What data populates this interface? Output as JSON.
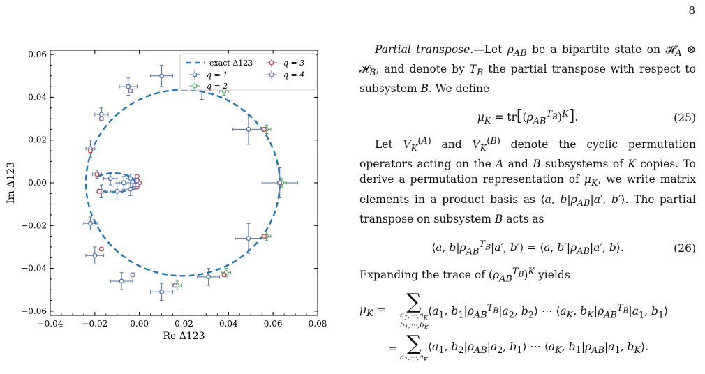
{
  "page": {
    "number": "8"
  },
  "chart_data": {
    "type": "scatter",
    "xlabel": "Re Δ123",
    "ylabel": "Im Δ123",
    "xlim": [
      -0.04,
      0.08
    ],
    "ylim": [
      -0.062,
      0.062
    ],
    "xticks": [
      "−0.04",
      "−0.02",
      "0.00",
      "0.02",
      "0.04",
      "0.06",
      "0.08"
    ],
    "xtick_values": [
      -0.04,
      -0.02,
      0,
      0.02,
      0.04,
      0.06,
      0.08
    ],
    "yticks": [
      "−0.06",
      "−0.04",
      "−0.02",
      "0.00",
      "0.02",
      "0.04",
      "0.06"
    ],
    "ytick_values": [
      -0.06,
      -0.04,
      -0.02,
      0,
      0.02,
      0.04,
      0.06
    ],
    "legend_placement": "top-right",
    "legend": [
      {
        "label": "exact Δ123",
        "series": "exact"
      },
      {
        "label": "q = 1",
        "series": "q1"
      },
      {
        "label": "q = 2",
        "series": "q2"
      },
      {
        "label": "q = 3",
        "series": "q3"
      },
      {
        "label": "q = 4",
        "series": "q4"
      }
    ],
    "colors": {
      "exact": "#1f77b4",
      "q1": "#4c72b0",
      "q2": "#55a868",
      "q3": "#c44e52",
      "q4": "#8172b3"
    },
    "series": [
      {
        "name": "q = 1",
        "points": [
          {
            "x": 0.063,
            "y": 0.0,
            "xe": 0.008,
            "ye": 0.007
          },
          {
            "x": 0.049,
            "y": 0.025,
            "xe": 0.007,
            "ye": 0.007
          },
          {
            "x": 0.028,
            "y": 0.045,
            "xe": 0.007,
            "ye": 0.006
          },
          {
            "x": 0.01,
            "y": 0.05,
            "xe": 0.005,
            "ye": 0.005
          },
          {
            "x": -0.005,
            "y": 0.045,
            "xe": 0.004,
            "ye": 0.004
          },
          {
            "x": -0.017,
            "y": 0.032,
            "xe": 0.003,
            "ye": 0.003
          },
          {
            "x": -0.022,
            "y": 0.016,
            "xe": 0.002,
            "ye": 0.004
          },
          {
            "x": -0.019,
            "y": 0.004,
            "xe": 0.002,
            "ye": 0.002
          },
          {
            "x": -0.022,
            "y": -0.019,
            "xe": 0.003,
            "ye": 0.003
          },
          {
            "x": -0.02,
            "y": -0.034,
            "xe": 0.004,
            "ye": 0.004
          },
          {
            "x": -0.008,
            "y": -0.046,
            "xe": 0.005,
            "ye": 0.004
          },
          {
            "x": 0.01,
            "y": -0.051,
            "xe": 0.005,
            "ye": 0.004
          },
          {
            "x": 0.031,
            "y": -0.044,
            "xe": 0.005,
            "ye": 0.004
          },
          {
            "x": 0.049,
            "y": -0.026,
            "xe": 0.006,
            "ye": 0.007
          },
          {
            "x": -0.017,
            "y": -0.004,
            "xe": 0.002,
            "ye": 0.003
          },
          {
            "x": -0.013,
            "y": 0.002,
            "xe": 0.003,
            "ye": 0.003
          },
          {
            "x": -0.01,
            "y": -0.004,
            "xe": 0.003,
            "ye": 0.004
          },
          {
            "x": -0.007,
            "y": 0.0,
            "xe": 0.002,
            "ye": 0.003
          },
          {
            "x": -0.004,
            "y": -0.003,
            "xe": 0.002,
            "ye": 0.003
          },
          {
            "x": -0.004,
            "y": 0.002,
            "xe": 0.002,
            "ye": 0.002
          },
          {
            "x": -0.002,
            "y": -0.001,
            "xe": 0.001,
            "ye": 0.002
          },
          {
            "x": -0.001,
            "y": 0.001,
            "xe": 0.001,
            "ye": 0.001
          }
        ]
      },
      {
        "name": "q = 2",
        "points": [
          {
            "x": 0.064,
            "y": 0.0,
            "xe": 0.002,
            "ye": 0.002
          },
          {
            "x": 0.057,
            "y": 0.025,
            "xe": 0.002,
            "ye": 0.002
          },
          {
            "x": 0.038,
            "y": 0.043,
            "xe": 0.002,
            "ye": 0.002
          },
          {
            "x": 0.017,
            "y": -0.048,
            "xe": 0.002,
            "ye": 0.002
          },
          {
            "x": 0.039,
            "y": -0.042,
            "xe": 0.002,
            "ye": 0.002
          },
          {
            "x": 0.057,
            "y": -0.025,
            "xe": 0.002,
            "ye": 0.002
          }
        ]
      },
      {
        "name": "q = 3",
        "points": [
          {
            "x": 0.063,
            "y": 0.0,
            "xe": 0.0008,
            "ye": 0.0008
          },
          {
            "x": 0.056,
            "y": 0.025,
            "xe": 0.0008,
            "ye": 0.0008
          },
          {
            "x": -0.004,
            "y": 0.043,
            "xe": 0.0008,
            "ye": 0.0008
          },
          {
            "x": -0.017,
            "y": 0.03,
            "xe": 0.0008,
            "ye": 0.0008
          },
          {
            "x": -0.022,
            "y": 0.015,
            "xe": 0.0008,
            "ye": 0.0008
          },
          {
            "x": -0.019,
            "y": 0.004,
            "xe": 0.0008,
            "ye": 0.0008
          },
          {
            "x": -0.018,
            "y": -0.004,
            "xe": 0.0008,
            "ye": 0.0008
          },
          {
            "x": -0.017,
            "y": -0.031,
            "xe": 0.0008,
            "ye": 0.0008
          },
          {
            "x": -0.003,
            "y": -0.043,
            "xe": 0.0008,
            "ye": 0.0008
          },
          {
            "x": 0.016,
            "y": -0.048,
            "xe": 0.0008,
            "ye": 0.0008
          },
          {
            "x": 0.038,
            "y": -0.043,
            "xe": 0.0008,
            "ye": 0.0008
          },
          {
            "x": 0.056,
            "y": -0.025,
            "xe": 0.0008,
            "ye": 0.0008
          },
          {
            "x": -0.001,
            "y": 0.003,
            "xe": 0.0006,
            "ye": 0.0006
          },
          {
            "x": -0.001,
            "y": -0.002,
            "xe": 0.0006,
            "ye": 0.0006
          },
          {
            "x": 0.0,
            "y": 0.0,
            "xe": 0.0006,
            "ye": 0.0006
          }
        ]
      },
      {
        "name": "q = 4",
        "points": [
          {
            "x": 0.063,
            "y": 0.0,
            "xe": 0.0005,
            "ye": 0.0005
          },
          {
            "x": -0.004,
            "y": 0.043,
            "xe": 0.0005,
            "ye": 0.0005
          },
          {
            "x": -0.017,
            "y": 0.03,
            "xe": 0.0005,
            "ye": 0.0005
          },
          {
            "x": -0.003,
            "y": -0.043,
            "xe": 0.0005,
            "ye": 0.0005
          },
          {
            "x": 0.016,
            "y": -0.048,
            "xe": 0.0005,
            "ye": 0.0005
          },
          {
            "x": -0.001,
            "y": 0.001,
            "xe": 0.0005,
            "ye": 0.0005
          },
          {
            "x": -0.001,
            "y": -0.001,
            "xe": 0.0005,
            "ye": 0.0005
          }
        ]
      }
    ]
  },
  "text": {
    "para1_heading": "Partial transpose.",
    "para1_lead": "—Let ",
    "para1_mid1": " be a bipartite state on ",
    "para1_mid2": ", and denote by ",
    "para1_mid3": " the partial transpose with respect to subsystem ",
    "para1_end": ". We define",
    "eq25_number": "(25)",
    "para2_a": "Let ",
    "para2_b": " and ",
    "para2_c": " denote the cyclic permutation operators acting on the ",
    "para2_d": " and ",
    "para2_e": " subsystems of ",
    "para2_f": " copies. To derive a permutation representation of ",
    "para2_g": ", we write matrix elements in a product basis as ",
    "para2_h": ". The partial transpose on subsystem ",
    "para2_i": " acts as",
    "eq26_number": "(26)",
    "para3_a": "Expanding the trace of ",
    "para3_b": " yields"
  }
}
